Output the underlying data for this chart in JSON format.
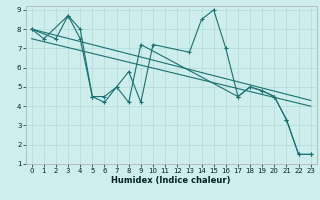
{
  "xlabel": "Humidex (Indice chaleur)",
  "bg_color": "#ceeeed",
  "grid_color": "#b8dcdc",
  "line_color": "#1a7070",
  "xlim": [
    -0.5,
    23.5
  ],
  "ylim": [
    1,
    9.2
  ],
  "xticks": [
    0,
    1,
    2,
    3,
    4,
    5,
    6,
    7,
    8,
    9,
    10,
    11,
    12,
    13,
    14,
    15,
    16,
    17,
    18,
    19,
    20,
    21,
    22,
    23
  ],
  "yticks": [
    1,
    2,
    3,
    4,
    5,
    6,
    7,
    8,
    9
  ],
  "line1_x": [
    0,
    1,
    3,
    4,
    5,
    6,
    7,
    8,
    9,
    10,
    13,
    14,
    15,
    16,
    17,
    18,
    19,
    20,
    21,
    22,
    23
  ],
  "line1_y": [
    8.0,
    7.5,
    8.7,
    7.5,
    4.5,
    4.2,
    5.0,
    5.8,
    4.2,
    7.2,
    6.8,
    8.5,
    9.0,
    7.0,
    4.5,
    5.0,
    4.8,
    4.5,
    3.3,
    1.5,
    1.5
  ],
  "line2_x": [
    0,
    2,
    3,
    4,
    5,
    6,
    7,
    8,
    9,
    17,
    18,
    19,
    20,
    21,
    22,
    23
  ],
  "line2_y": [
    8.0,
    7.5,
    8.7,
    8.0,
    4.5,
    4.5,
    5.0,
    4.2,
    7.2,
    4.5,
    5.0,
    4.8,
    4.5,
    3.3,
    1.5,
    1.5
  ],
  "line3_x": [
    0,
    23
  ],
  "line3_y": [
    8.0,
    4.3
  ],
  "line4_x": [
    0,
    23
  ],
  "line4_y": [
    7.5,
    4.0
  ]
}
